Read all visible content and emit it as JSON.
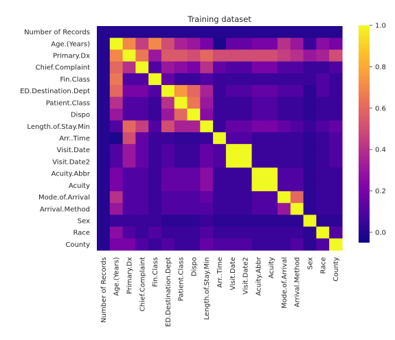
{
  "chart_data": {
    "type": "heatmap",
    "title": "Training dataset",
    "labels": [
      "Number of Records",
      "Age.(Years)",
      "Primary.Dx",
      "Chief.Complaint",
      "Fin.Class",
      "ED.Destination.Dept",
      "Patient.Class",
      "Dispo",
      "Length.of.Stay.Min",
      "Arr..Time",
      "Visit.Date",
      "Visit.Date2",
      "Acuity.Abbr",
      "Acuity",
      "Mode.of.Arrival",
      "Arrival.Method",
      "Sex",
      "Race",
      "County"
    ],
    "matrix": [
      [
        0.0,
        0.0,
        0.0,
        0.0,
        0.0,
        0.0,
        0.0,
        0.0,
        0.0,
        0.0,
        0.0,
        0.0,
        0.0,
        0.0,
        0.0,
        0.0,
        0.0,
        0.0,
        0.0
      ],
      [
        0.0,
        1.0,
        0.7,
        0.45,
        0.7,
        0.5,
        0.35,
        0.3,
        0.2,
        -0.02,
        0.15,
        0.15,
        0.2,
        0.2,
        0.4,
        0.3,
        0.05,
        0.25,
        0.2
      ],
      [
        0.0,
        0.7,
        1.0,
        0.65,
        0.3,
        0.55,
        0.55,
        0.5,
        0.6,
        0.5,
        0.5,
        0.5,
        0.5,
        0.5,
        0.45,
        0.4,
        0.3,
        0.35,
        0.5
      ],
      [
        0.0,
        0.6,
        0.4,
        1.0,
        0.1,
        0.3,
        0.25,
        0.2,
        0.4,
        0.15,
        0.1,
        0.1,
        0.2,
        0.2,
        0.1,
        0.1,
        0.05,
        0.05,
        0.1
      ],
      [
        0.0,
        0.65,
        0.1,
        0.1,
        1.0,
        0.15,
        0.05,
        0.05,
        0.1,
        0.05,
        0.05,
        0.05,
        0.05,
        0.05,
        0.05,
        0.05,
        0.05,
        0.1,
        0.05
      ],
      [
        0.0,
        0.6,
        0.2,
        0.2,
        0.1,
        1.0,
        0.75,
        0.6,
        0.35,
        0.05,
        0.1,
        0.1,
        0.15,
        0.15,
        0.1,
        0.1,
        0.02,
        0.1,
        0.05
      ],
      [
        0.0,
        0.4,
        0.1,
        0.1,
        0.05,
        0.4,
        1.0,
        0.65,
        0.3,
        0.05,
        0.05,
        0.05,
        0.1,
        0.1,
        0.05,
        0.05,
        0.02,
        0.05,
        0.05
      ],
      [
        0.0,
        0.3,
        0.1,
        0.1,
        0.05,
        0.3,
        0.6,
        1.0,
        0.25,
        0.05,
        0.05,
        0.05,
        0.1,
        0.1,
        0.05,
        0.05,
        0.02,
        0.05,
        0.05
      ],
      [
        0.0,
        0.1,
        0.6,
        0.45,
        0.1,
        0.5,
        0.35,
        0.35,
        1.0,
        0.05,
        0.15,
        0.15,
        0.2,
        0.2,
        0.15,
        0.1,
        0.05,
        0.1,
        0.15
      ],
      [
        0.0,
        -0.02,
        0.5,
        0.15,
        0.05,
        0.05,
        0.03,
        0.03,
        0.05,
        1.0,
        0.1,
        0.1,
        0.05,
        0.05,
        0.05,
        0.05,
        0.02,
        0.05,
        0.1
      ],
      [
        0.0,
        0.1,
        0.3,
        0.15,
        0.05,
        0.1,
        0.05,
        0.05,
        0.15,
        0.1,
        1.0,
        1.0,
        0.05,
        0.05,
        0.05,
        0.05,
        0.02,
        0.05,
        0.1
      ],
      [
        0.0,
        0.1,
        0.3,
        0.15,
        0.05,
        0.1,
        0.05,
        0.05,
        0.15,
        0.1,
        1.0,
        1.0,
        0.05,
        0.05,
        0.05,
        0.05,
        0.02,
        0.05,
        0.1
      ],
      [
        0.0,
        0.2,
        0.1,
        0.1,
        0.05,
        0.15,
        0.15,
        0.15,
        0.25,
        0.05,
        0.05,
        0.05,
        1.0,
        1.0,
        0.1,
        0.1,
        0.02,
        0.05,
        0.05
      ],
      [
        0.0,
        0.2,
        0.1,
        0.1,
        0.05,
        0.15,
        0.15,
        0.15,
        0.25,
        0.05,
        0.05,
        0.05,
        1.0,
        1.0,
        0.1,
        0.1,
        0.02,
        0.05,
        0.05
      ],
      [
        0.0,
        0.4,
        0.1,
        0.1,
        0.05,
        0.1,
        0.1,
        0.1,
        0.15,
        0.05,
        0.05,
        0.05,
        0.1,
        0.1,
        1.0,
        0.6,
        0.02,
        0.05,
        0.05
      ],
      [
        0.0,
        0.3,
        0.1,
        0.1,
        0.05,
        0.1,
        0.1,
        0.1,
        0.1,
        0.05,
        0.05,
        0.05,
        0.1,
        0.1,
        0.3,
        1.0,
        0.02,
        0.05,
        0.05
      ],
      [
        0.0,
        0.05,
        0.05,
        0.05,
        0.05,
        0.02,
        0.02,
        0.02,
        0.05,
        0.02,
        0.02,
        0.02,
        0.02,
        0.02,
        0.02,
        0.02,
        1.0,
        0.02,
        0.02
      ],
      [
        0.0,
        0.25,
        0.1,
        0.05,
        0.1,
        0.05,
        0.05,
        0.05,
        0.1,
        0.05,
        0.05,
        0.05,
        0.05,
        0.05,
        0.05,
        0.05,
        0.02,
        1.0,
        0.1
      ],
      [
        0.0,
        0.2,
        0.2,
        0.1,
        0.05,
        0.1,
        0.05,
        0.05,
        0.15,
        0.1,
        0.1,
        0.1,
        0.05,
        0.05,
        0.05,
        0.1,
        0.02,
        0.1,
        1.0
      ]
    ],
    "vmin": -0.05,
    "vmax": 1.0,
    "colorbar_ticks": [
      "0.0",
      "0.2",
      "0.4",
      "0.6",
      "0.8",
      "1.0"
    ],
    "colormap": "plasma",
    "grid": false,
    "legend": "colorbar-right"
  }
}
